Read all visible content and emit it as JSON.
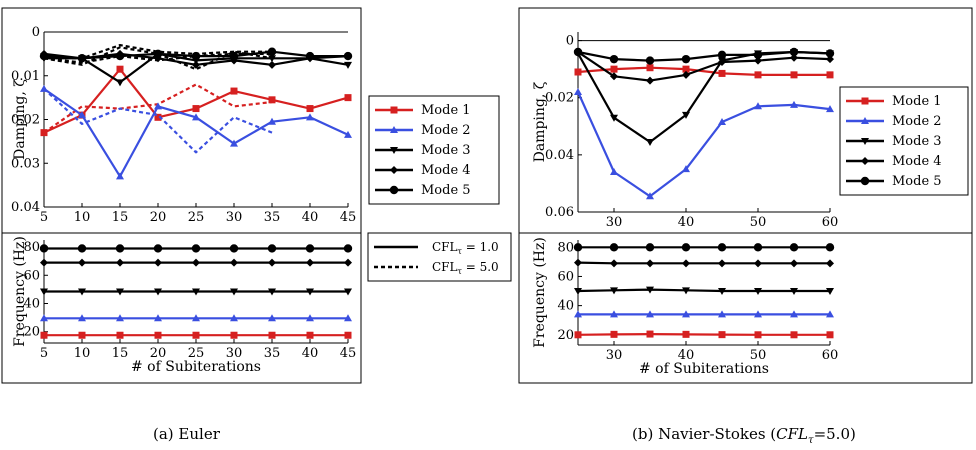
{
  "captions": {
    "a": "(a) Euler",
    "b_prefix": "(b) Navier-Stokes (",
    "b_cfl": "CFL",
    "b_tau": "τ",
    "b_suffix": "=5.0)"
  },
  "legend_modes": [
    "Mode 1",
    "Mode 2",
    "Mode 3",
    "Mode 4",
    "Mode 5"
  ],
  "legend_cfl": [
    "CFL",
    "CFL"
  ],
  "legend_cfl_values": [
    "= 1.0",
    "= 5.0"
  ],
  "legend_cfl_sub": "τ",
  "colors": {
    "mode1": "#d62020",
    "mode2": "#3a4fe0",
    "mode3": "#000000",
    "mode4": "#000000",
    "mode5": "#000000"
  },
  "markers": {
    "mode1": "square",
    "mode2": "triangle-up",
    "mode3": "triangle-down",
    "mode4": "diamond",
    "mode5": "circle"
  },
  "chart_data": [
    {
      "id": "euler-damping",
      "type": "line",
      "ylabel": "Damping, ζ",
      "xlim": [
        5,
        45
      ],
      "ylim": [
        0,
        0.04
      ],
      "y_inverted": true,
      "xticks": [
        "5",
        "10",
        "15",
        "20",
        "25",
        "30",
        "35",
        "40",
        "45"
      ],
      "yticks": [
        "0",
        "0.01",
        "0.02",
        "0.03",
        "0.04"
      ],
      "series": [
        {
          "name": "Mode 1",
          "cfl": "1.0",
          "x": [
            5,
            10,
            15,
            20,
            25,
            30,
            35,
            40,
            45
          ],
          "y": [
            0.023,
            0.019,
            0.0085,
            0.0195,
            0.0175,
            0.0135,
            0.0155,
            0.0175,
            0.015
          ]
        },
        {
          "name": "Mode 1",
          "cfl": "5.0",
          "x": [
            5,
            10,
            15,
            20,
            25,
            30,
            35
          ],
          "y": [
            0.023,
            0.017,
            0.0175,
            0.0165,
            0.012,
            0.017,
            0.016
          ]
        },
        {
          "name": "Mode 2",
          "cfl": "1.0",
          "x": [
            5,
            10,
            15,
            20,
            25,
            30,
            35,
            40,
            45
          ],
          "y": [
            0.013,
            0.019,
            0.033,
            0.017,
            0.0195,
            0.0255,
            0.0205,
            0.0195,
            0.0235
          ]
        },
        {
          "name": "Mode 2",
          "cfl": "5.0",
          "x": [
            5,
            10,
            15,
            20,
            25,
            30,
            35
          ],
          "y": [
            0.013,
            0.021,
            0.0175,
            0.019,
            0.0275,
            0.0195,
            0.023
          ]
        },
        {
          "name": "Mode 3",
          "cfl": "1.0",
          "x": [
            5,
            10,
            15,
            20,
            25,
            30,
            35,
            40,
            45
          ],
          "y": [
            0.006,
            0.006,
            0.0115,
            0.005,
            0.0065,
            0.006,
            0.006,
            0.006,
            0.0075
          ]
        },
        {
          "name": "Mode 3",
          "cfl": "5.0",
          "x": [
            5,
            10,
            15,
            20,
            25,
            30,
            35
          ],
          "y": [
            0.006,
            0.0075,
            0.0035,
            0.005,
            0.0085,
            0.0045,
            0.006
          ]
        },
        {
          "name": "Mode 4",
          "cfl": "1.0",
          "x": [
            5,
            10,
            15,
            20,
            25,
            30,
            35,
            40,
            45
          ],
          "y": [
            0.005,
            0.006,
            0.005,
            0.006,
            0.0075,
            0.0065,
            0.0075,
            0.006,
            0.0055
          ]
        },
        {
          "name": "Mode 4",
          "cfl": "5.0",
          "x": [
            5,
            10,
            15,
            20,
            25,
            30,
            35
          ],
          "y": [
            0.006,
            0.007,
            0.0055,
            0.0065,
            0.0055,
            0.005,
            0.005
          ]
        },
        {
          "name": "Mode 5",
          "cfl": "1.0",
          "x": [
            5,
            10,
            15,
            20,
            25,
            30,
            35,
            40,
            45
          ],
          "y": [
            0.0055,
            0.006,
            0.0055,
            0.005,
            0.0055,
            0.0055,
            0.0045,
            0.0055,
            0.0055
          ]
        },
        {
          "name": "Mode 5",
          "cfl": "5.0",
          "x": [
            5,
            10,
            15,
            20,
            25,
            30,
            35
          ],
          "y": [
            0.006,
            0.006,
            0.003,
            0.0045,
            0.005,
            0.0045,
            0.0045
          ]
        }
      ]
    },
    {
      "id": "euler-frequency",
      "type": "line",
      "xlabel": "# of Subiterations",
      "ylabel": "Frequency (Hz)",
      "xlim": [
        5,
        45
      ],
      "ylim": [
        12,
        85
      ],
      "xticks": [
        "5",
        "10",
        "15",
        "20",
        "25",
        "30",
        "35",
        "40",
        "45"
      ],
      "yticks": [
        "20",
        "40",
        "60",
        "80"
      ],
      "series": [
        {
          "name": "Mode 1",
          "x": [
            5,
            10,
            15,
            20,
            25,
            30,
            35,
            40,
            45
          ],
          "y": [
            17.5,
            17.5,
            17.5,
            17.5,
            17.5,
            17.5,
            17.5,
            17.5,
            17.5
          ]
        },
        {
          "name": "Mode 2",
          "x": [
            5,
            10,
            15,
            20,
            25,
            30,
            35,
            40,
            45
          ],
          "y": [
            29.5,
            29.5,
            29.5,
            29.5,
            29.5,
            29.5,
            29.5,
            29.5,
            29.5
          ]
        },
        {
          "name": "Mode 3",
          "x": [
            5,
            10,
            15,
            20,
            25,
            30,
            35,
            40,
            45
          ],
          "y": [
            48.5,
            48.5,
            48.5,
            48.5,
            48.5,
            48.5,
            48.5,
            48.5,
            48.5
          ]
        },
        {
          "name": "Mode 4",
          "x": [
            5,
            10,
            15,
            20,
            25,
            30,
            35,
            40,
            45
          ],
          "y": [
            69,
            69,
            69,
            69,
            69,
            69,
            69,
            69,
            69
          ]
        },
        {
          "name": "Mode 5",
          "x": [
            5,
            10,
            15,
            20,
            25,
            30,
            35,
            40,
            45
          ],
          "y": [
            79,
            79,
            79,
            79,
            79,
            79,
            79,
            79,
            79
          ]
        }
      ]
    },
    {
      "id": "ns-damping",
      "type": "line",
      "ylabel": "Damping, ζ",
      "xlim": [
        25,
        60
      ],
      "ylim": [
        -0.003,
        0.06
      ],
      "y_inverted": true,
      "xticks": [
        "30",
        "40",
        "50",
        "60"
      ],
      "yticks": [
        "0",
        "0.02",
        "0.04",
        "0.06"
      ],
      "series": [
        {
          "name": "Mode 1",
          "x": [
            25,
            30,
            35,
            40,
            45,
            50,
            55,
            60
          ],
          "y": [
            0.011,
            0.01,
            0.0095,
            0.01,
            0.0115,
            0.012,
            0.012,
            0.012
          ]
        },
        {
          "name": "Mode 2",
          "x": [
            25,
            30,
            35,
            40,
            45,
            50,
            55,
            60
          ],
          "y": [
            0.018,
            0.046,
            0.0545,
            0.045,
            0.0285,
            0.023,
            0.0225,
            0.024
          ]
        },
        {
          "name": "Mode 3",
          "x": [
            25,
            30,
            35,
            40,
            45,
            50,
            55,
            60
          ],
          "y": [
            0.0045,
            0.027,
            0.0355,
            0.026,
            0.007,
            0.0045,
            0.004,
            0.0045
          ]
        },
        {
          "name": "Mode 4",
          "x": [
            25,
            30,
            35,
            40,
            45,
            50,
            55,
            60
          ],
          "y": [
            0.004,
            0.0125,
            0.014,
            0.012,
            0.0075,
            0.007,
            0.006,
            0.0065
          ]
        },
        {
          "name": "Mode 5",
          "x": [
            25,
            30,
            35,
            40,
            45,
            50,
            55,
            60
          ],
          "y": [
            0.004,
            0.0065,
            0.007,
            0.0065,
            0.005,
            0.005,
            0.004,
            0.0045
          ]
        }
      ]
    },
    {
      "id": "ns-frequency",
      "type": "line",
      "xlabel": "# of Subiterations",
      "ylabel": "Frequency (Hz)",
      "xlim": [
        25,
        60
      ],
      "ylim": [
        13,
        85
      ],
      "xticks": [
        "30",
        "40",
        "50",
        "60"
      ],
      "yticks": [
        "20",
        "40",
        "60",
        "80"
      ],
      "series": [
        {
          "name": "Mode 1",
          "x": [
            25,
            30,
            35,
            40,
            45,
            50,
            55,
            60
          ],
          "y": [
            20,
            20.3,
            20.5,
            20.3,
            20.1,
            20,
            20,
            20
          ]
        },
        {
          "name": "Mode 2",
          "x": [
            25,
            30,
            35,
            40,
            45,
            50,
            55,
            60
          ],
          "y": [
            34,
            34,
            34,
            34,
            34,
            34,
            34,
            34
          ]
        },
        {
          "name": "Mode 3",
          "x": [
            25,
            30,
            35,
            40,
            45,
            50,
            55,
            60
          ],
          "y": [
            50,
            50.5,
            51,
            50.5,
            50,
            50,
            50,
            50
          ]
        },
        {
          "name": "Mode 4",
          "x": [
            25,
            30,
            35,
            40,
            45,
            50,
            55,
            60
          ],
          "y": [
            69.5,
            69,
            69,
            69,
            69,
            69,
            69,
            69
          ]
        },
        {
          "name": "Mode 5",
          "x": [
            25,
            30,
            35,
            40,
            45,
            50,
            55,
            60
          ],
          "y": [
            80,
            80,
            80,
            80,
            80,
            80,
            80,
            80
          ]
        }
      ]
    }
  ]
}
